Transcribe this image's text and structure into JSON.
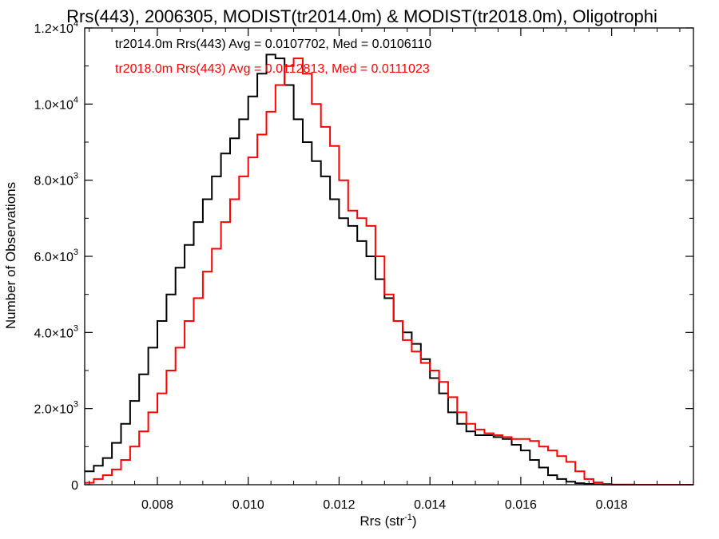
{
  "chart_data": {
    "type": "line",
    "style": "step-histogram",
    "title": "Rrs(443), 2006305, MODIST(tr2014.0m) & MODIST(tr2018.0m), Oligotrophi",
    "xlabel": "Rrs (str",
    "xlabel_sup": "-1",
    "xlabel_end": ")",
    "ylabel": "Number of Observations",
    "xlim": [
      0.0064,
      0.0198
    ],
    "ylim": [
      0,
      12000
    ],
    "grid": false,
    "legend_position": "top-left (inside plot)",
    "x_ticks": [
      0.008,
      0.01,
      0.012,
      0.014,
      0.016,
      0.018
    ],
    "x_tick_labels": [
      "0.008",
      "0.010",
      "0.012",
      "0.014",
      "0.016",
      "0.018"
    ],
    "y_ticks": [
      {
        "value": 0,
        "mantissa": "0",
        "exp": ""
      },
      {
        "value": 2000,
        "mantissa": "2.0×10",
        "exp": "3"
      },
      {
        "value": 4000,
        "mantissa": "4.0×10",
        "exp": "3"
      },
      {
        "value": 6000,
        "mantissa": "6.0×10",
        "exp": "3"
      },
      {
        "value": 8000,
        "mantissa": "8.0×10",
        "exp": "3"
      },
      {
        "value": 10000,
        "mantissa": "1.0×10",
        "exp": "4"
      },
      {
        "value": 12000,
        "mantissa": "1.2×10",
        "exp": "4"
      }
    ],
    "series": [
      {
        "name": "tr2014.0m",
        "color": "#000000",
        "legend_text": "tr2014.0m Rrs(443) Avg = 0.0107702, Med = 0.0106110",
        "x": [
          0.0064,
          0.0066,
          0.0068,
          0.007,
          0.0072,
          0.0074,
          0.0076,
          0.0078,
          0.008,
          0.0082,
          0.0084,
          0.0086,
          0.0088,
          0.009,
          0.0092,
          0.0094,
          0.0096,
          0.0098,
          0.01,
          0.0102,
          0.0104,
          0.0106,
          0.0108,
          0.011,
          0.0112,
          0.0114,
          0.0116,
          0.0118,
          0.012,
          0.0122,
          0.0124,
          0.0126,
          0.0128,
          0.013,
          0.0132,
          0.0134,
          0.0136,
          0.0138,
          0.014,
          0.0142,
          0.0144,
          0.0146,
          0.0148,
          0.015,
          0.0152,
          0.0154,
          0.0156,
          0.0158,
          0.016,
          0.0162,
          0.0164,
          0.0166,
          0.0168,
          0.017,
          0.0172,
          0.0174,
          0.0176,
          0.0178,
          0.018,
          0.0185,
          0.019,
          0.0198
        ],
        "y": [
          350,
          500,
          700,
          1100,
          1600,
          2200,
          2900,
          3600,
          4300,
          5000,
          5700,
          6300,
          6900,
          7500,
          8100,
          8700,
          9100,
          9600,
          10200,
          10800,
          11300,
          11200,
          10500,
          9600,
          9000,
          8500,
          8100,
          7500,
          7000,
          6800,
          6400,
          6000,
          5400,
          4900,
          4300,
          4000,
          3700,
          3300,
          2800,
          2400,
          1900,
          1600,
          1400,
          1300,
          1300,
          1250,
          1200,
          1050,
          900,
          650,
          450,
          250,
          150,
          80,
          40,
          20,
          10,
          5,
          0,
          0,
          0,
          0
        ]
      },
      {
        "name": "tr2018.0m",
        "color": "#ff0000",
        "legend_text": "tr2018.0m Rrs(443) Avg = 0.0112813, Med = 0.0111023",
        "x": [
          0.0064,
          0.0066,
          0.0068,
          0.007,
          0.0072,
          0.0074,
          0.0076,
          0.0078,
          0.008,
          0.0082,
          0.0084,
          0.0086,
          0.0088,
          0.009,
          0.0092,
          0.0094,
          0.0096,
          0.0098,
          0.01,
          0.0102,
          0.0104,
          0.0106,
          0.0108,
          0.011,
          0.0112,
          0.0114,
          0.0116,
          0.0118,
          0.012,
          0.0122,
          0.0124,
          0.0126,
          0.0128,
          0.013,
          0.0132,
          0.0134,
          0.0136,
          0.0138,
          0.014,
          0.0142,
          0.0144,
          0.0146,
          0.0148,
          0.015,
          0.0152,
          0.0154,
          0.0156,
          0.0158,
          0.016,
          0.0162,
          0.0164,
          0.0166,
          0.0168,
          0.017,
          0.0172,
          0.0174,
          0.0176,
          0.0178,
          0.018,
          0.0185,
          0.019,
          0.0198
        ],
        "y": [
          50,
          150,
          250,
          400,
          650,
          1000,
          1400,
          1900,
          2400,
          3000,
          3600,
          4300,
          4900,
          5600,
          6200,
          6900,
          7500,
          8100,
          8600,
          9200,
          9800,
          10500,
          11000,
          11200,
          10800,
          10000,
          9400,
          8900,
          8000,
          7200,
          7000,
          6800,
          6000,
          5000,
          4300,
          3800,
          3500,
          3200,
          3000,
          2700,
          2300,
          1900,
          1600,
          1450,
          1350,
          1300,
          1250,
          1200,
          1200,
          1150,
          1000,
          900,
          750,
          600,
          350,
          150,
          60,
          20,
          5,
          0,
          0,
          0
        ]
      }
    ]
  }
}
